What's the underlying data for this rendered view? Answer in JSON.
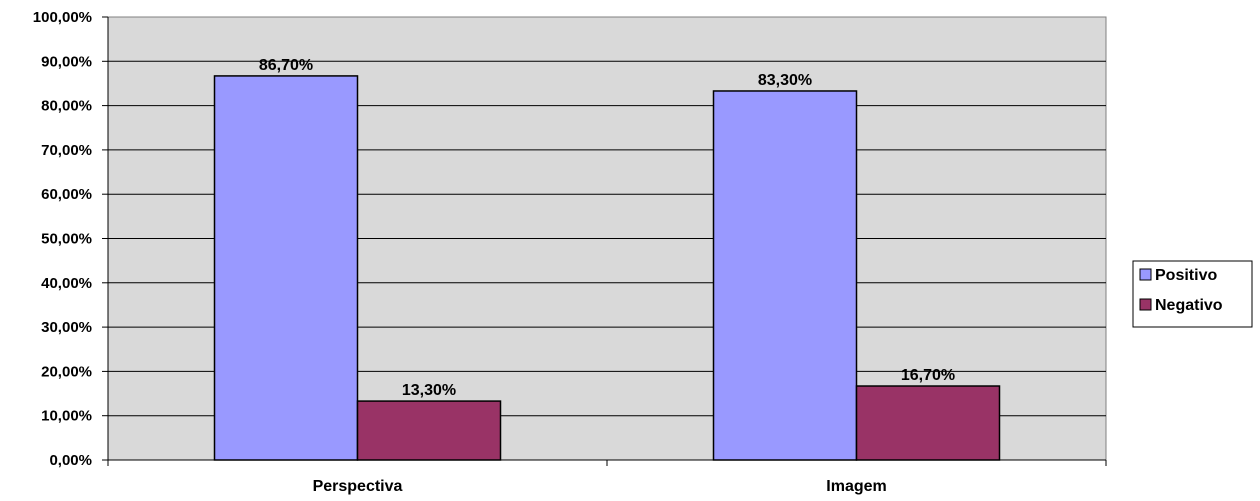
{
  "chart_data": {
    "type": "bar",
    "categories": [
      "Perspectiva",
      "Imagem"
    ],
    "series": [
      {
        "name": "Positivo",
        "values": [
          86.7,
          83.3
        ],
        "labels": [
          "86,70%",
          "83,30%"
        ],
        "color": "#9999FF"
      },
      {
        "name": "Negativo",
        "values": [
          13.3,
          16.7
        ],
        "labels": [
          "13,30%",
          "16,70%"
        ],
        "color": "#993366"
      }
    ],
    "ylim": [
      0,
      100
    ],
    "yticks": [
      0,
      10,
      20,
      30,
      40,
      50,
      60,
      70,
      80,
      90,
      100
    ],
    "ytick_labels": [
      "0,00%",
      "10,00%",
      "20,00%",
      "30,00%",
      "40,00%",
      "50,00%",
      "60,00%",
      "70,00%",
      "80,00%",
      "90,00%",
      "100,00%"
    ],
    "title": "",
    "xlabel": "",
    "ylabel": "",
    "grid": true,
    "legend_position": "right",
    "plot_background": "#D9D9D9"
  }
}
